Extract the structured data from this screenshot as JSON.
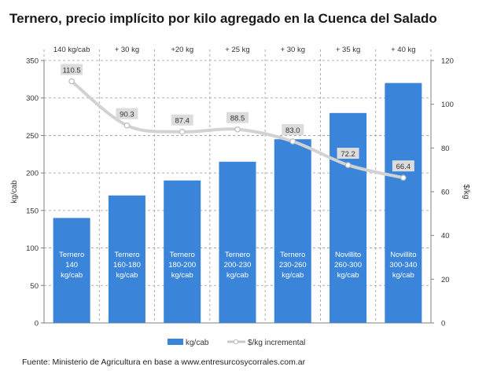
{
  "chart_data": {
    "type": "bar",
    "title": "Ternero, precio implícito por kilo agregado en la Cuenca del Salado",
    "source": "Fuente: Ministerio de Agricultura en base a www.entresurcosycorrales.com.ar",
    "top_labels": [
      "140 kg/cab",
      "+ 30 kg",
      "+20 kg",
      "+ 25 kg",
      "+ 30 kg",
      "+ 35 kg",
      "+ 40 kg"
    ],
    "categories": [
      [
        "Ternero",
        "140",
        "kg/cab"
      ],
      [
        "Ternero",
        "160-180",
        "kg/cab"
      ],
      [
        "Ternero",
        "180-200",
        "kg/cab"
      ],
      [
        "Ternero",
        "200-230",
        "kg/cab"
      ],
      [
        "Ternero",
        "230-260",
        "kg/cab"
      ],
      [
        "Novillito",
        "260-300",
        "kg/cab"
      ],
      [
        "Novillito",
        "300-340",
        "kg/cab"
      ]
    ],
    "series": [
      {
        "name": "kg/cab",
        "type": "bar",
        "axis": "left",
        "color": "#3a85d9",
        "values": [
          140,
          170,
          190,
          215,
          245,
          280,
          320
        ]
      },
      {
        "name": "$/kg incremental",
        "type": "line",
        "axis": "right",
        "color": "#d2d2d2",
        "values": [
          110.5,
          90.3,
          87.4,
          88.5,
          83.0,
          72.2,
          66.4
        ],
        "labels": [
          "110.5",
          "90.3",
          "87.4",
          "88.5",
          "83.0",
          "72.2",
          "66.4"
        ]
      }
    ],
    "ylabel": "kg/cab",
    "y2label": "$/kg",
    "ylim": [
      0,
      350
    ],
    "y2lim": [
      0,
      120
    ],
    "yticks": [
      "0",
      "50",
      "100",
      "150",
      "200",
      "250",
      "300",
      "350"
    ],
    "y2ticks": [
      "0",
      "20",
      "40",
      "60",
      "80",
      "100",
      "120"
    ],
    "legend": {
      "position": "bottom",
      "bar_label": "kg/cab",
      "line_label": "$/kg incremental"
    },
    "grid": true
  }
}
